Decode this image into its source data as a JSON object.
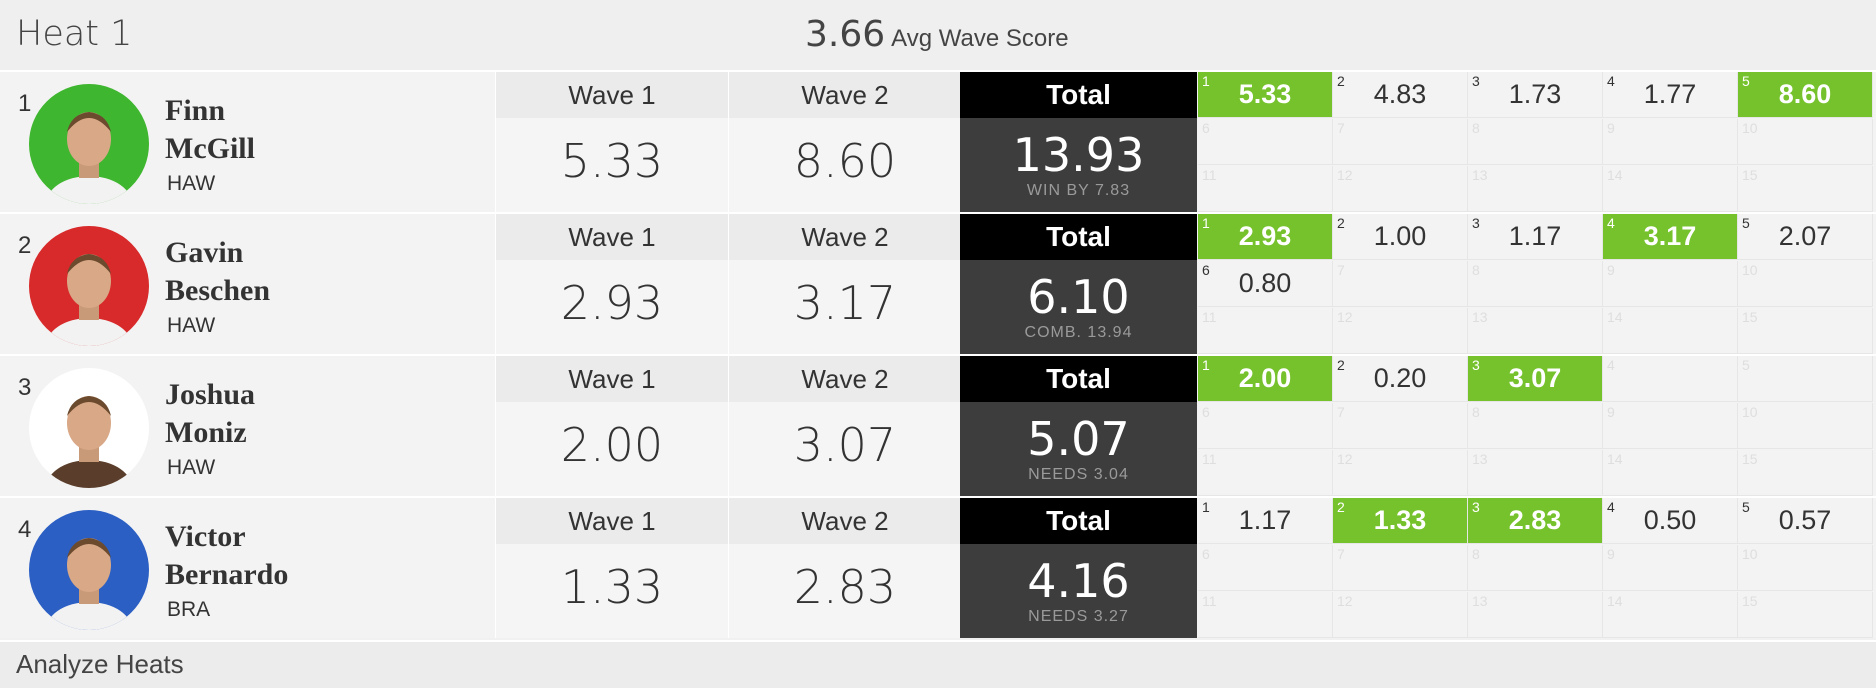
{
  "header": {
    "title": "Heat 1",
    "avg_value": "3.66",
    "avg_label": "Avg Wave Score"
  },
  "colors": {
    "highlight": "#76c22c",
    "total_bg": "#3d3d3d",
    "total_head_bg": "#000000"
  },
  "surfers": [
    {
      "rank": "1",
      "first": "Finn",
      "last": "McGill",
      "country": "HAW",
      "jersey_color": "#3fb62f",
      "wave1_label": "Wave 1",
      "wave1": "5.33",
      "wave2_label": "Wave 2",
      "wave2": "8.60",
      "total_label": "Total",
      "total": "13.93",
      "note": "WIN BY 7.83",
      "scores": [
        {
          "n": "1",
          "v": "5.33",
          "hi": true
        },
        {
          "n": "2",
          "v": "4.83",
          "hi": false
        },
        {
          "n": "3",
          "v": "1.73",
          "hi": false
        },
        {
          "n": "4",
          "v": "1.77",
          "hi": false
        },
        {
          "n": "5",
          "v": "8.60",
          "hi": true
        },
        {
          "n": "6",
          "v": "",
          "hi": false
        },
        {
          "n": "7",
          "v": "",
          "hi": false
        },
        {
          "n": "8",
          "v": "",
          "hi": false
        },
        {
          "n": "9",
          "v": "",
          "hi": false
        },
        {
          "n": "10",
          "v": "",
          "hi": false
        },
        {
          "n": "11",
          "v": "",
          "hi": false
        },
        {
          "n": "12",
          "v": "",
          "hi": false
        },
        {
          "n": "13",
          "v": "",
          "hi": false
        },
        {
          "n": "14",
          "v": "",
          "hi": false
        },
        {
          "n": "15",
          "v": "",
          "hi": false
        }
      ]
    },
    {
      "rank": "2",
      "first": "Gavin",
      "last": "Beschen",
      "country": "HAW",
      "jersey_color": "#d82a2a",
      "wave1_label": "Wave 1",
      "wave1": "2.93",
      "wave2_label": "Wave 2",
      "wave2": "3.17",
      "total_label": "Total",
      "total": "6.10",
      "note": "COMB. 13.94",
      "scores": [
        {
          "n": "1",
          "v": "2.93",
          "hi": true
        },
        {
          "n": "2",
          "v": "1.00",
          "hi": false
        },
        {
          "n": "3",
          "v": "1.17",
          "hi": false
        },
        {
          "n": "4",
          "v": "3.17",
          "hi": true
        },
        {
          "n": "5",
          "v": "2.07",
          "hi": false
        },
        {
          "n": "6",
          "v": "0.80",
          "hi": false
        },
        {
          "n": "7",
          "v": "",
          "hi": false
        },
        {
          "n": "8",
          "v": "",
          "hi": false
        },
        {
          "n": "9",
          "v": "",
          "hi": false
        },
        {
          "n": "10",
          "v": "",
          "hi": false
        },
        {
          "n": "11",
          "v": "",
          "hi": false
        },
        {
          "n": "12",
          "v": "",
          "hi": false
        },
        {
          "n": "13",
          "v": "",
          "hi": false
        },
        {
          "n": "14",
          "v": "",
          "hi": false
        },
        {
          "n": "15",
          "v": "",
          "hi": false
        }
      ]
    },
    {
      "rank": "3",
      "first": "Joshua",
      "last": "Moniz",
      "country": "HAW",
      "jersey_color": "#ffffff",
      "wave1_label": "Wave 1",
      "wave1": "2.00",
      "wave2_label": "Wave 2",
      "wave2": "3.07",
      "total_label": "Total",
      "total": "5.07",
      "note": "NEEDS 3.04",
      "scores": [
        {
          "n": "1",
          "v": "2.00",
          "hi": true
        },
        {
          "n": "2",
          "v": "0.20",
          "hi": false
        },
        {
          "n": "3",
          "v": "3.07",
          "hi": true
        },
        {
          "n": "4",
          "v": "",
          "hi": false
        },
        {
          "n": "5",
          "v": "",
          "hi": false
        },
        {
          "n": "6",
          "v": "",
          "hi": false
        },
        {
          "n": "7",
          "v": "",
          "hi": false
        },
        {
          "n": "8",
          "v": "",
          "hi": false
        },
        {
          "n": "9",
          "v": "",
          "hi": false
        },
        {
          "n": "10",
          "v": "",
          "hi": false
        },
        {
          "n": "11",
          "v": "",
          "hi": false
        },
        {
          "n": "12",
          "v": "",
          "hi": false
        },
        {
          "n": "13",
          "v": "",
          "hi": false
        },
        {
          "n": "14",
          "v": "",
          "hi": false
        },
        {
          "n": "15",
          "v": "",
          "hi": false
        }
      ]
    },
    {
      "rank": "4",
      "first": "Victor",
      "last": "Bernardo",
      "country": "BRA",
      "jersey_color": "#2b5fc4",
      "wave1_label": "Wave 1",
      "wave1": "1.33",
      "wave2_label": "Wave 2",
      "wave2": "2.83",
      "total_label": "Total",
      "total": "4.16",
      "note": "NEEDS 3.27",
      "scores": [
        {
          "n": "1",
          "v": "1.17",
          "hi": false
        },
        {
          "n": "2",
          "v": "1.33",
          "hi": true
        },
        {
          "n": "3",
          "v": "2.83",
          "hi": true
        },
        {
          "n": "4",
          "v": "0.50",
          "hi": false
        },
        {
          "n": "5",
          "v": "0.57",
          "hi": false
        },
        {
          "n": "6",
          "v": "",
          "hi": false
        },
        {
          "n": "7",
          "v": "",
          "hi": false
        },
        {
          "n": "8",
          "v": "",
          "hi": false
        },
        {
          "n": "9",
          "v": "",
          "hi": false
        },
        {
          "n": "10",
          "v": "",
          "hi": false
        },
        {
          "n": "11",
          "v": "",
          "hi": false
        },
        {
          "n": "12",
          "v": "",
          "hi": false
        },
        {
          "n": "13",
          "v": "",
          "hi": false
        },
        {
          "n": "14",
          "v": "",
          "hi": false
        },
        {
          "n": "15",
          "v": "",
          "hi": false
        }
      ]
    }
  ],
  "footer": {
    "link": "Analyze Heats"
  }
}
